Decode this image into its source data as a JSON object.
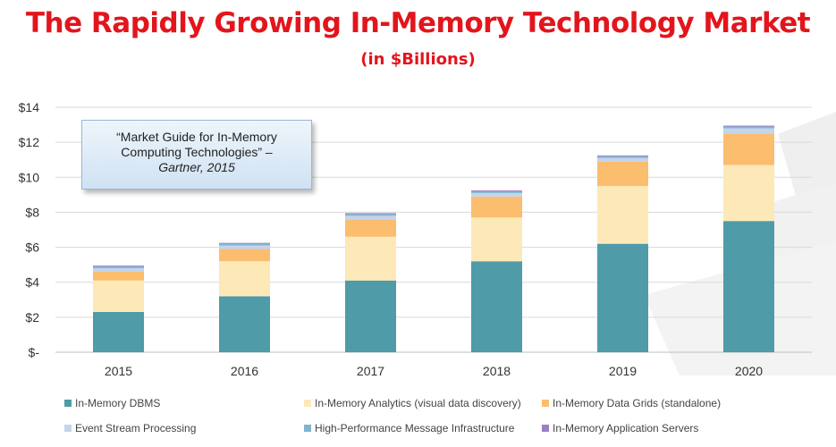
{
  "header": {
    "title": "The Rapidly Growing In-Memory Technology Market",
    "subtitle": "(in $Billions)"
  },
  "callout": {
    "line1": "“Market Guide for In-Memory",
    "line2": "Computing Technologies” –",
    "citation": "Gartner, 2015"
  },
  "chart_data": {
    "type": "bar",
    "stacked": true,
    "categories": [
      "2015",
      "2016",
      "2017",
      "2018",
      "2019",
      "2020"
    ],
    "ylim": [
      0,
      14
    ],
    "yticks": [
      0,
      2,
      4,
      6,
      8,
      10,
      12,
      14
    ],
    "ytick_labels": [
      "$-",
      "$2",
      "$4",
      "$6",
      "$8",
      "$10",
      "$12",
      "$14"
    ],
    "grid": true,
    "legend_position": "bottom",
    "series": [
      {
        "name": "In-Memory DBMS",
        "color": "#4f9ba8",
        "values": [
          2.3,
          3.2,
          4.1,
          5.2,
          6.2,
          7.5
        ]
      },
      {
        "name": "In-Memory Analytics (visual data discovery)",
        "color": "#fde9b8",
        "values": [
          1.8,
          2.0,
          2.5,
          2.5,
          3.3,
          3.2
        ]
      },
      {
        "name": "In-Memory Data Grids (standalone)",
        "color": "#fbbd6e",
        "values": [
          0.5,
          0.7,
          1.0,
          1.2,
          1.4,
          1.8
        ]
      },
      {
        "name": "Event Stream Processing",
        "color": "#c3d4ec",
        "values": [
          0.2,
          0.2,
          0.2,
          0.2,
          0.2,
          0.3
        ]
      },
      {
        "name": "High-Performance Message Infrastructure",
        "color": "#7fb6cf",
        "values": [
          0.1,
          0.1,
          0.1,
          0.1,
          0.1,
          0.1
        ]
      },
      {
        "name": "In-Memory Application Servers",
        "color": "#9d7ec3",
        "values": [
          0.05,
          0.05,
          0.05,
          0.05,
          0.05,
          0.05
        ]
      }
    ]
  }
}
